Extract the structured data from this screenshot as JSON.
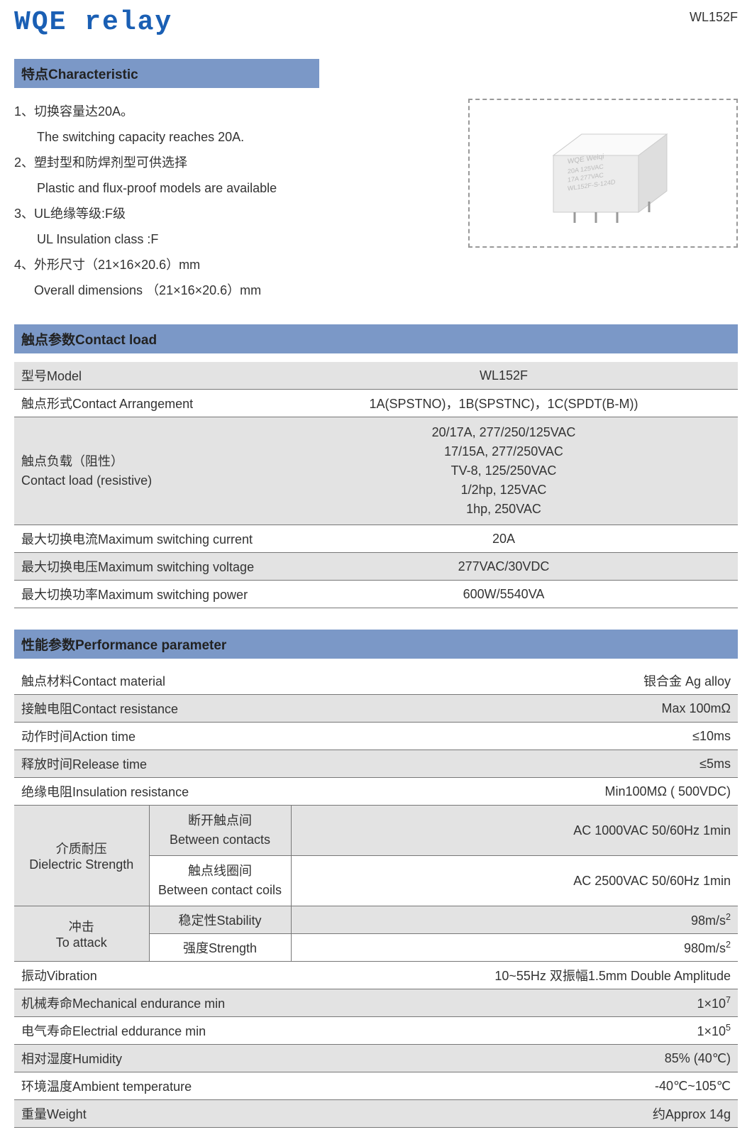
{
  "header": {
    "brand": "WQE relay",
    "model": "WL152F"
  },
  "characteristic": {
    "title": "特点Characteristic",
    "items": [
      {
        "zh": "1、切换容量达20A。",
        "en": "The switching capacity reaches 20A."
      },
      {
        "zh": "2、塑封型和防焊剂型可供选择",
        "en": "Plastic and flux-proof models are available"
      },
      {
        "zh": "3、UL绝缘等级:F级",
        "en": "UL Insulation class :F"
      },
      {
        "zh": "4、外形尺寸（21×16×20.6）mm",
        "en": "Overall dimensions （21×16×20.6）mm"
      }
    ]
  },
  "contact_load": {
    "title": "触点参数Contact load",
    "rows": [
      {
        "label": "型号Model",
        "value": "WL152F",
        "shaded": true
      },
      {
        "label": "触点形式Contact Arrangement",
        "value": "1A(SPSTNO)，1B(SPSTNC)，1C(SPDT(B-M))",
        "shaded": false
      },
      {
        "label": "触点负载（阻性）\nContact load (resistive)",
        "value": "20/17A, 277/250/125VAC\n17/15A, 277/250VAC\nTV-8, 125/250VAC\n1/2hp, 125VAC\n1hp, 250VAC",
        "shaded": true
      },
      {
        "label": "最大切换电流Maximum switching current",
        "value": "20A",
        "shaded": false
      },
      {
        "label": "最大切换电压Maximum switching voltage",
        "value": "277VAC/30VDC",
        "shaded": true
      },
      {
        "label": "最大切换功率Maximum switching power",
        "value": "600W/5540VA",
        "shaded": false
      }
    ]
  },
  "performance": {
    "title": "性能参数Performance parameter",
    "simple_rows_top": [
      {
        "label": "触点材料Contact material",
        "value": "银合金 Ag alloy",
        "shaded": false
      },
      {
        "label": "接触电阻Contact resistance",
        "value": "Max 100mΩ",
        "shaded": true
      },
      {
        "label": "动作时间Action time",
        "value": "≤10ms",
        "shaded": false
      },
      {
        "label": "释放时间Release time",
        "value": "≤5ms",
        "shaded": true
      },
      {
        "label": "绝缘电阻Insulation resistance",
        "value": "Min100MΩ ( 500VDC)",
        "shaded": false
      }
    ],
    "dielectric": {
      "label": "介质耐压\nDielectric Strength",
      "sub1_label": "断开触点间\nBetween contacts",
      "sub1_value": "AC 1000VAC 50/60Hz 1min",
      "sub2_label": "触点线圈间\nBetween contact coils",
      "sub2_value": "AC 2500VAC 50/60Hz 1min"
    },
    "attack": {
      "label": "冲击\nTo attack",
      "sub1_label": "稳定性Stability",
      "sub1_value_base": "98m/s",
      "sub1_value_exp": "2",
      "sub2_label": "强度Strength",
      "sub2_value_base": "980m/s",
      "sub2_value_exp": "2"
    },
    "simple_rows_bottom": [
      {
        "label": "振动Vibration",
        "value": "10~55Hz 双振幅1.5mm Double Amplitude",
        "shaded": false
      },
      {
        "label": "机械寿命Mechanical endurance min",
        "value_base": "1×10",
        "value_exp": "7",
        "shaded": true
      },
      {
        "label": "电气寿命Electrial eddurance min",
        "value_base": "1×10",
        "value_exp": "5",
        "shaded": false
      },
      {
        "label": "相对湿度Humidity",
        "value": "85% (40℃)",
        "shaded": true
      },
      {
        "label": "环境温度Ambient temperature",
        "value": "-40℃~105℃",
        "shaded": false
      },
      {
        "label": "重量Weight",
        "value": "约Approx  14g",
        "shaded": true
      }
    ]
  },
  "colors": {
    "header_bg": "#7b98c7",
    "shaded_row": "#e3e3e3",
    "brand": "#1a5fb4",
    "border": "#777777"
  }
}
